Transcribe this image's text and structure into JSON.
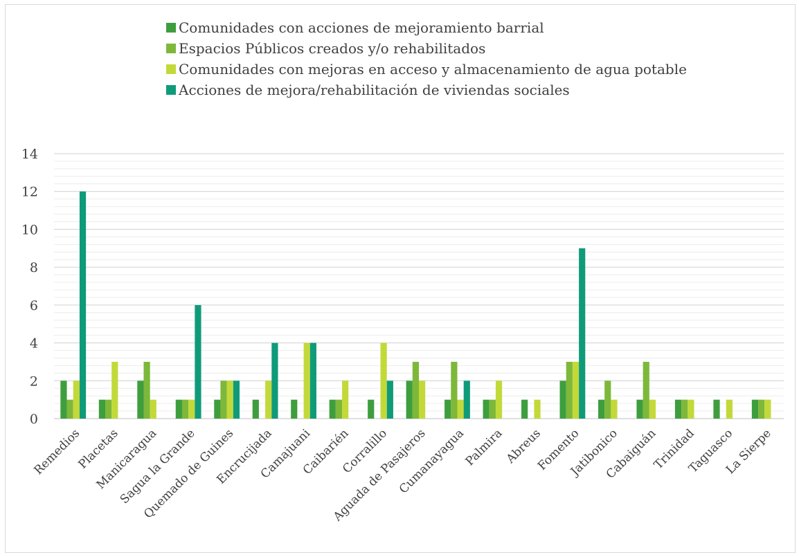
{
  "chart_data": {
    "type": "bar",
    "categories": [
      "Remedios",
      "Placetas",
      "Manicaragua",
      "Sagua la Grande",
      "Quemado de Guines",
      "Encrucijada",
      "Camajuani",
      "Caibarién",
      "Corralillo",
      "Aguada de Pasajeros",
      "Cumanayagua",
      "Palmira",
      "Abreus",
      "Fomento",
      "Jatibonico",
      "Cabaiguán",
      "Trinidad",
      "Taguasco",
      "La Sierpe"
    ],
    "series": [
      {
        "name": "Comunidades con acciones de mejoramiento barrial",
        "color": "#3e9e3e",
        "values": [
          2,
          1,
          2,
          1,
          1,
          1,
          1,
          1,
          1,
          2,
          1,
          1,
          1,
          2,
          1,
          1,
          1,
          1,
          1
        ]
      },
      {
        "name": "Espacios Públicos creados y/o rehabilitados",
        "color": "#7db83a",
        "values": [
          1,
          1,
          3,
          1,
          2,
          0,
          0,
          1,
          0,
          3,
          3,
          1,
          0,
          3,
          2,
          3,
          1,
          0,
          1
        ]
      },
      {
        "name": "Comunidades con mejoras en acceso y almacenamiento de agua potable",
        "color": "#c3d93a",
        "values": [
          2,
          3,
          1,
          1,
          2,
          2,
          4,
          2,
          4,
          2,
          1,
          2,
          1,
          3,
          1,
          1,
          1,
          1,
          1
        ]
      },
      {
        "name": "Acciones de mejora/rehabilitación de viviendas sociales",
        "color": "#0f9b7a",
        "values": [
          12,
          0,
          0,
          6,
          2,
          4,
          4,
          0,
          2,
          0,
          2,
          0,
          0,
          9,
          0,
          0,
          0,
          0,
          0
        ]
      }
    ],
    "yticks": [
      "0",
      "2",
      "4",
      "6",
      "8",
      "10",
      "12",
      "14"
    ],
    "ylim": [
      0,
      14
    ],
    "grid": true,
    "minor_grid": true,
    "legend_position": "top"
  }
}
